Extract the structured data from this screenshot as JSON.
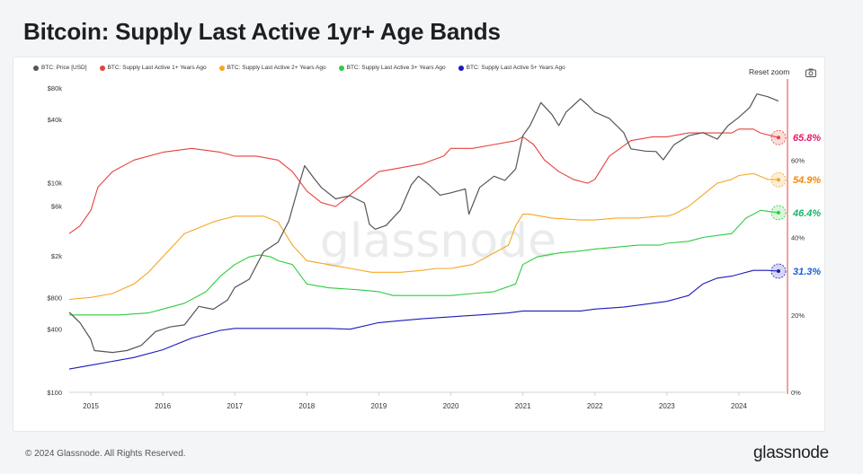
{
  "page": {
    "title": "Bitcoin: Supply Last Active 1yr+ Age Bands",
    "copyright": "© 2024 Glassnode. All Rights Reserved.",
    "logo": "glassnode",
    "watermark": "glassnode"
  },
  "toolbar": {
    "reset_zoom": "Reset zoom",
    "camera_icon": "camera-icon"
  },
  "legend": [
    {
      "label": "BTC: Price [USD]",
      "color": "#555555"
    },
    {
      "label": "BTC: Supply Last Active 1+ Years Ago",
      "color": "#e8413c"
    },
    {
      "label": "BTC: Supply Last Active 2+ Years Ago",
      "color": "#f5a623"
    },
    {
      "label": "BTC: Supply Last Active 3+ Years Ago",
      "color": "#2ecc40"
    },
    {
      "label": "BTC: Supply Last Active 5+ Years Ago",
      "color": "#1a1ab8"
    }
  ],
  "chart_data": {
    "type": "line",
    "title": "Bitcoin: Supply Last Active 1yr+ Age Bands",
    "x_ticks": [
      "2015",
      "2016",
      "2017",
      "2018",
      "2019",
      "2020",
      "2021",
      "2022",
      "2023",
      "2024"
    ],
    "x_range": [
      2014.7,
      2024.65
    ],
    "y_left": {
      "label": "",
      "scale": "log",
      "ylim": [
        100,
        90000
      ],
      "ticks": [
        {
          "v": 80000,
          "label": "$80k"
        },
        {
          "v": 40000,
          "label": "$40k"
        },
        {
          "v": 10000,
          "label": "$10k"
        },
        {
          "v": 6000,
          "label": "$6k"
        },
        {
          "v": 2000,
          "label": "$2k"
        },
        {
          "v": 800,
          "label": "$800"
        },
        {
          "v": 400,
          "label": "$400"
        },
        {
          "v": 100,
          "label": "$100"
        }
      ]
    },
    "y_right": {
      "label": "",
      "scale": "linear",
      "ylim": [
        0,
        80
      ],
      "ticks": [
        {
          "v": 60,
          "label": "60%"
        },
        {
          "v": 40,
          "label": "40%"
        },
        {
          "v": 20,
          "label": "20%"
        },
        {
          "v": 0,
          "label": "0%"
        }
      ]
    },
    "series": [
      {
        "name": "BTC: Price [USD]",
        "axis": "left",
        "color": "#555555",
        "x": [
          2014.7,
          2014.85,
          2015.0,
          2015.05,
          2015.3,
          2015.5,
          2015.7,
          2015.9,
          2016.1,
          2016.3,
          2016.5,
          2016.7,
          2016.9,
          2017.0,
          2017.2,
          2017.4,
          2017.6,
          2017.75,
          2017.9,
          2017.97,
          2018.1,
          2018.2,
          2018.4,
          2018.6,
          2018.8,
          2018.87,
          2018.95,
          2019.1,
          2019.3,
          2019.45,
          2019.55,
          2019.7,
          2019.85,
          2020.0,
          2020.2,
          2020.25,
          2020.4,
          2020.6,
          2020.75,
          2020.9,
          2021.0,
          2021.1,
          2021.25,
          2021.4,
          2021.5,
          2021.6,
          2021.8,
          2021.9,
          2022.0,
          2022.2,
          2022.4,
          2022.5,
          2022.7,
          2022.85,
          2022.95,
          2023.1,
          2023.3,
          2023.5,
          2023.7,
          2023.85,
          2024.0,
          2024.15,
          2024.25,
          2024.4,
          2024.55
        ],
        "values": [
          580,
          460,
          320,
          250,
          240,
          250,
          280,
          380,
          420,
          440,
          660,
          620,
          760,
          1000,
          1200,
          2200,
          2700,
          4300,
          10000,
          14500,
          11000,
          9000,
          7000,
          7500,
          6400,
          4000,
          3600,
          3900,
          5500,
          9500,
          11500,
          9500,
          7600,
          8000,
          8700,
          5000,
          9000,
          11500,
          10500,
          13500,
          28000,
          35000,
          58000,
          45000,
          35000,
          47000,
          63000,
          55000,
          47000,
          41000,
          30000,
          21000,
          20000,
          19800,
          16500,
          23000,
          28000,
          30000,
          26000,
          35000,
          42000,
          52000,
          70000,
          66000,
          60000
        ]
      },
      {
        "name": "BTC: Supply Last Active 1+ Years Ago",
        "axis": "right",
        "color": "#e8413c",
        "end_label": "65.8%",
        "x": [
          2014.7,
          2014.85,
          2015.0,
          2015.1,
          2015.3,
          2015.6,
          2016.0,
          2016.4,
          2016.8,
          2017.0,
          2017.3,
          2017.6,
          2017.8,
          2018.0,
          2018.2,
          2018.4,
          2018.6,
          2018.8,
          2019.0,
          2019.3,
          2019.6,
          2019.9,
          2020.0,
          2020.3,
          2020.6,
          2020.9,
          2021.0,
          2021.15,
          2021.3,
          2021.5,
          2021.7,
          2021.9,
          2022.0,
          2022.2,
          2022.5,
          2022.8,
          2023.0,
          2023.3,
          2023.6,
          2023.9,
          2024.0,
          2024.2,
          2024.3,
          2024.55
        ],
        "values": [
          41,
          43,
          47,
          53,
          57,
          60,
          62,
          63,
          62,
          61,
          61,
          60,
          57,
          52,
          49,
          48,
          51,
          54,
          57,
          58,
          59,
          61,
          63,
          63,
          64,
          65,
          66,
          64,
          60,
          57,
          55,
          54,
          55,
          61,
          65,
          66,
          66,
          67,
          67,
          67,
          68,
          68,
          67,
          65.8
        ]
      },
      {
        "name": "BTC: Supply Last Active 2+ Years Ago",
        "axis": "right",
        "color": "#f5a623",
        "end_label": "54.9%",
        "x": [
          2014.7,
          2015.0,
          2015.3,
          2015.6,
          2015.8,
          2016.0,
          2016.3,
          2016.7,
          2016.9,
          2017.0,
          2017.2,
          2017.4,
          2017.6,
          2017.8,
          2018.0,
          2018.3,
          2018.6,
          2018.9,
          2019.0,
          2019.3,
          2019.6,
          2019.8,
          2020.0,
          2020.3,
          2020.5,
          2020.8,
          2020.9,
          2021.0,
          2021.1,
          2021.4,
          2021.8,
          2022.0,
          2022.3,
          2022.6,
          2022.9,
          2023.0,
          2023.1,
          2023.3,
          2023.5,
          2023.7,
          2023.9,
          2024.0,
          2024.2,
          2024.4,
          2024.55
        ],
        "values": [
          24,
          24.5,
          25.5,
          28,
          31,
          35,
          41,
          44,
          45,
          45.5,
          45.5,
          45.5,
          44,
          38,
          34,
          33,
          32,
          31,
          31,
          31,
          31.5,
          32,
          32,
          33,
          35,
          38,
          43,
          46,
          46,
          45,
          44.5,
          44.5,
          45,
          45,
          45.5,
          45.5,
          46,
          48,
          51,
          54,
          55,
          56,
          56.5,
          55,
          54.9
        ]
      },
      {
        "name": "BTC: Supply Last Active 3+ Years Ago",
        "axis": "right",
        "color": "#2ecc40",
        "end_label": "46.4%",
        "x": [
          2014.7,
          2015.0,
          2015.4,
          2015.8,
          2016.0,
          2016.3,
          2016.6,
          2016.8,
          2017.0,
          2017.2,
          2017.35,
          2017.5,
          2017.6,
          2017.8,
          2018.0,
          2018.3,
          2018.7,
          2019.0,
          2019.2,
          2019.5,
          2019.8,
          2020.0,
          2020.3,
          2020.6,
          2020.9,
          2021.0,
          2021.2,
          2021.5,
          2021.8,
          2022.0,
          2022.3,
          2022.6,
          2022.9,
          2023.0,
          2023.3,
          2023.5,
          2023.7,
          2023.9,
          2024.0,
          2024.1,
          2024.3,
          2024.55
        ],
        "values": [
          20,
          20,
          20,
          20.5,
          21.5,
          23,
          26,
          30,
          33,
          35,
          35.5,
          35,
          34,
          33,
          28,
          27,
          26.5,
          26,
          25,
          25,
          25,
          25,
          25.5,
          26,
          28,
          33,
          35,
          36,
          36.5,
          37,
          37.5,
          38,
          38,
          38.5,
          39,
          40,
          40.5,
          41,
          43,
          45,
          47,
          46.4
        ]
      },
      {
        "name": "BTC: Supply Last Active 5+ Years Ago",
        "axis": "right",
        "color": "#1a1ab8",
        "end_label": "31.3%",
        "x": [
          2014.7,
          2015.0,
          2015.3,
          2015.6,
          2016.0,
          2016.4,
          2016.8,
          2017.0,
          2017.4,
          2017.8,
          2018.0,
          2018.3,
          2018.6,
          2019.0,
          2019.3,
          2019.6,
          2020.0,
          2020.4,
          2020.8,
          2021.0,
          2021.4,
          2021.8,
          2022.0,
          2022.4,
          2022.8,
          2023.0,
          2023.3,
          2023.5,
          2023.7,
          2023.9,
          2024.0,
          2024.2,
          2024.4,
          2024.55
        ],
        "values": [
          6,
          7,
          8,
          9,
          11,
          14,
          16,
          16.5,
          16.5,
          16.5,
          16.5,
          16.5,
          16.3,
          18,
          18.5,
          19,
          19.5,
          20,
          20.5,
          21,
          21,
          21,
          21.5,
          22,
          23,
          23.5,
          25,
          28,
          29.5,
          30,
          30.5,
          31.5,
          31.5,
          31.3
        ]
      }
    ]
  }
}
